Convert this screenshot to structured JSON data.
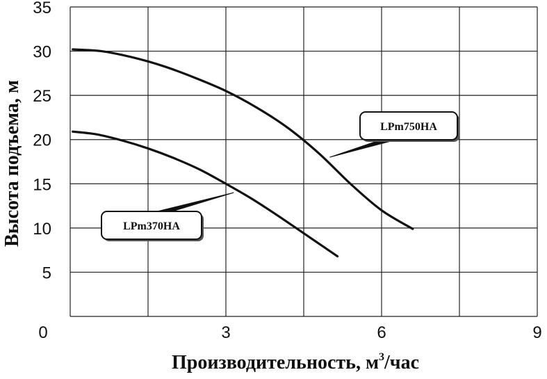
{
  "chart_data": {
    "type": "line",
    "title": "",
    "xlabel": "Производительность, м",
    "xlabel_sup": "3",
    "xlabel_tail": "/час",
    "ylabel": "Высота подъема, м",
    "xlim": [
      0,
      9
    ],
    "ylim": [
      0,
      35
    ],
    "x_ticks": [
      0,
      3,
      6,
      9
    ],
    "x_tick_labels": [
      "0",
      "3",
      "6",
      "9"
    ],
    "y_ticks": [
      5,
      10,
      15,
      20,
      25,
      30,
      35
    ],
    "y_tick_labels": [
      "5",
      "10",
      "15",
      "20",
      "25",
      "30",
      "35"
    ],
    "x_grid_step": 1.5,
    "y_grid_step": 5,
    "grid": true,
    "series": [
      {
        "name": "LPm750HA",
        "x": [
          0.05,
          0.6,
          1.2,
          1.8,
          2.4,
          3.0,
          3.6,
          4.2,
          4.8,
          5.4,
          6.0,
          6.6
        ],
        "y": [
          30.2,
          30.0,
          29.3,
          28.3,
          27.0,
          25.5,
          23.6,
          21.3,
          18.4,
          15.0,
          12.0,
          9.9
        ]
      },
      {
        "name": "LPm370HA",
        "x": [
          0.05,
          0.5,
          1.0,
          1.5,
          2.0,
          2.5,
          3.0,
          3.5,
          4.0,
          4.5,
          5.15
        ],
        "y": [
          20.9,
          20.6,
          19.9,
          19.0,
          17.9,
          16.6,
          15.0,
          13.3,
          11.4,
          9.4,
          6.8
        ]
      }
    ],
    "annotations": [
      {
        "label": "LPm750HA",
        "series": 0,
        "point_x": 5.0,
        "point_y": 18.0
      },
      {
        "label": "LPm370HA",
        "series": 1,
        "point_x": 3.15,
        "point_y": 14.0
      }
    ]
  }
}
